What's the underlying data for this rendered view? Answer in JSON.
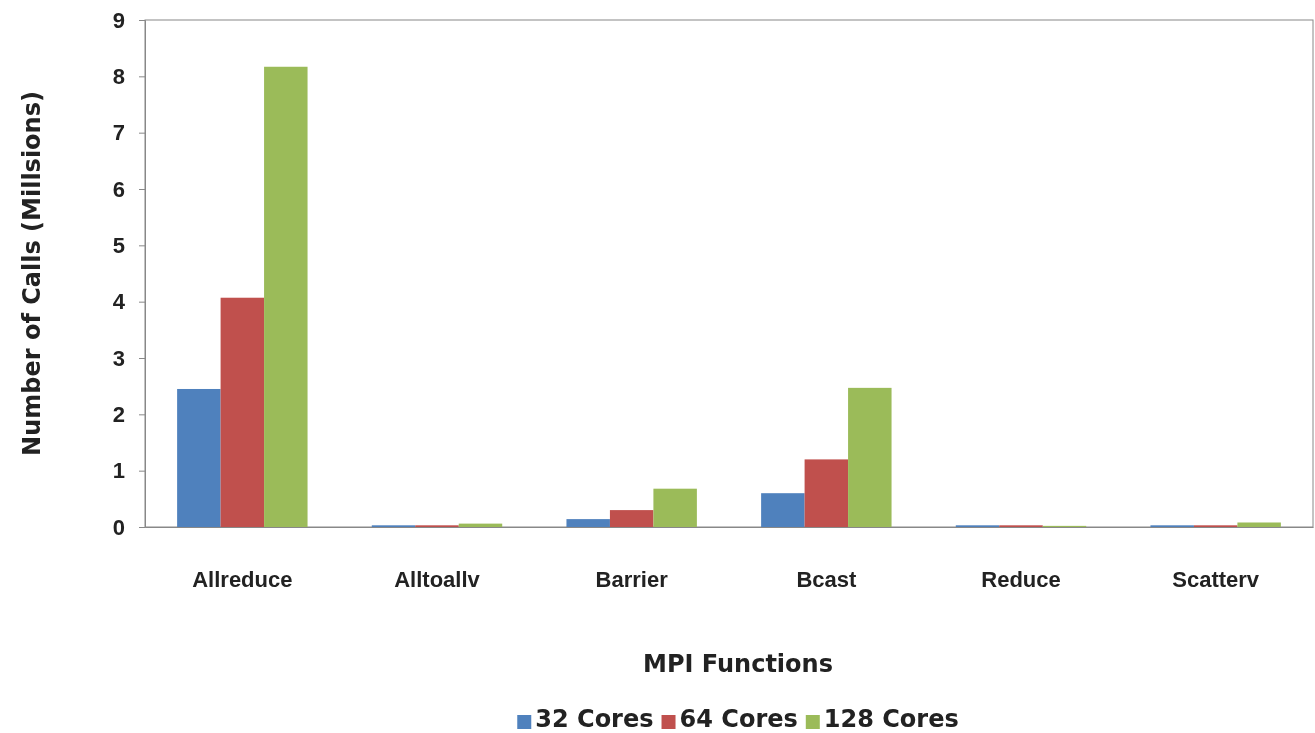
{
  "chart_data": {
    "type": "bar",
    "xlabel": "MPI Functions",
    "ylabel": "Number of Calls (Millsions)",
    "categories": [
      "Allreduce",
      "Alltoallv",
      "Barrier",
      "Bcast",
      "Reduce",
      "Scatterv"
    ],
    "series": [
      {
        "name": "32 Cores",
        "color": "#4f81bd",
        "values": [
          2.45,
          0.03,
          0.14,
          0.6,
          0.03,
          0.03
        ]
      },
      {
        "name": "64 Cores",
        "color": "#c0504d",
        "values": [
          4.07,
          0.03,
          0.3,
          1.2,
          0.03,
          0.03
        ]
      },
      {
        "name": "128 Cores",
        "color": "#9bbb59",
        "values": [
          8.17,
          0.06,
          0.68,
          2.47,
          0.02,
          0.08
        ]
      }
    ],
    "ylim": [
      0,
      9
    ],
    "yticks": [
      0,
      1,
      2,
      3,
      4,
      5,
      6,
      7,
      8,
      9
    ],
    "grid": false,
    "legend": "bottom"
  }
}
